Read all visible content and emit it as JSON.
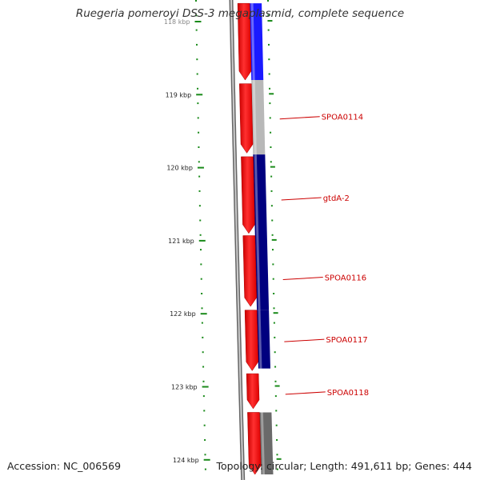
{
  "title": "Ruegeria pomeroyi DSS-3 megaplasmid, complete sequence",
  "footer": {
    "accession": "Accession: NC_006569",
    "summary": "Topology: circular; Length: 491,611 bp; Genes: 444"
  },
  "scale": {
    "ticks": [
      {
        "kbp": 118,
        "label": "118 kbp"
      },
      {
        "kbp": 119,
        "label": "119 kbp"
      },
      {
        "kbp": 120,
        "label": "120 kbp"
      },
      {
        "kbp": 121,
        "label": "121 kbp"
      },
      {
        "kbp": 122,
        "label": "122 kbp"
      },
      {
        "kbp": 123,
        "label": "123 kbp"
      },
      {
        "kbp": 124,
        "label": "124 kbp"
      }
    ]
  },
  "forward_genes": [
    {
      "start_kbp": 117.75,
      "end_kbp": 118.8
    },
    {
      "start_kbp": 118.85,
      "end_kbp": 119.8
    },
    {
      "start_kbp": 119.85,
      "end_kbp": 120.9
    },
    {
      "start_kbp": 120.93,
      "end_kbp": 121.9
    },
    {
      "start_kbp": 121.95,
      "end_kbp": 122.78
    },
    {
      "start_kbp": 122.82,
      "end_kbp": 123.3
    },
    {
      "start_kbp": 123.35,
      "end_kbp": 124.2
    }
  ],
  "outer_blocks": [
    {
      "start_kbp": 117.75,
      "end_kbp": 118.8,
      "color": "#1a1aff"
    },
    {
      "start_kbp": 118.8,
      "end_kbp": 119.82,
      "color": "#b8b8b8"
    },
    {
      "start_kbp": 119.82,
      "end_kbp": 120.93,
      "color": "#00007f"
    },
    {
      "start_kbp": 120.93,
      "end_kbp": 121.95,
      "color": "#00007f"
    },
    {
      "start_kbp": 121.95,
      "end_kbp": 122.75,
      "color": "#00007f"
    },
    {
      "start_kbp": 123.35,
      "end_kbp": 124.2,
      "color": "#6a6a6a"
    }
  ],
  "gene_labels": [
    {
      "name": "SPOA0114",
      "kbp": 119.3
    },
    {
      "name": "gtdA-2",
      "kbp": 120.41
    },
    {
      "name": "SPOA0116",
      "kbp": 121.5
    },
    {
      "name": "SPOA0117",
      "kbp": 122.35
    },
    {
      "name": "SPOA0118",
      "kbp": 123.07
    }
  ],
  "colors": {
    "forward_gene": "#ff0000",
    "backbone": "#888888",
    "tick": "#1a8a1a",
    "gene_label": "#cc0000"
  }
}
